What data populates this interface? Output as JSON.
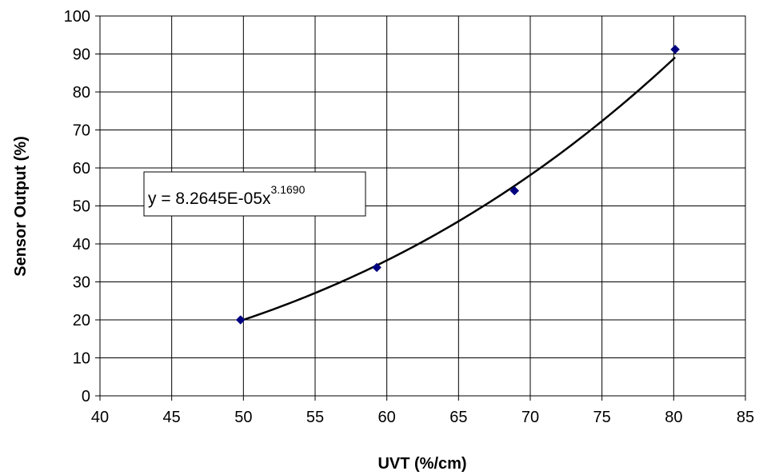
{
  "chart_data": {
    "type": "scatter",
    "title": "",
    "xlabel": "UVT (%/cm)",
    "ylabel": "Sensor Output (%)",
    "xlim": [
      40,
      85
    ],
    "ylim": [
      0,
      100
    ],
    "x_ticks": [
      40,
      45,
      50,
      55,
      60,
      65,
      70,
      75,
      80,
      85
    ],
    "y_ticks": [
      0,
      10,
      20,
      30,
      40,
      50,
      60,
      70,
      80,
      90,
      100
    ],
    "grid": true,
    "legend": "none",
    "series": [
      {
        "points": [
          {
            "x": 49.8,
            "y": 20.0
          },
          {
            "x": 59.3,
            "y": 33.8
          },
          {
            "x": 68.9,
            "y": 54.0
          },
          {
            "x": 80.1,
            "y": 91.2
          }
        ],
        "marker": "diamond",
        "color": "#000080"
      }
    ],
    "trendline": {
      "type": "power",
      "coefficient": 8.2645e-05,
      "exponent": 3.169,
      "x_range": [
        49.8,
        80.1
      ],
      "color": "#000000",
      "equation_base": "y = 8.2645E-05x",
      "equation_exponent": "3.1690"
    }
  }
}
